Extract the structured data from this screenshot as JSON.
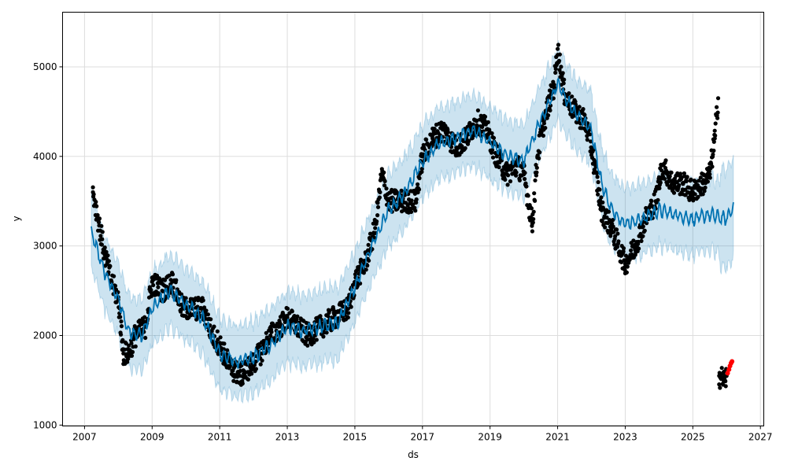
{
  "chart_data": {
    "type": "scatter",
    "title": "",
    "xlabel": "ds",
    "ylabel": "y",
    "xlim": [
      2006.35,
      2027.1
    ],
    "ylim": [
      990,
      5610
    ],
    "grid": true,
    "x_ticks": [
      "2007",
      "2009",
      "2011",
      "2013",
      "2015",
      "2017",
      "2019",
      "2021",
      "2023",
      "2025",
      "2027"
    ],
    "x_tick_values": [
      2007,
      2009,
      2011,
      2013,
      2015,
      2017,
      2019,
      2021,
      2023,
      2025,
      2027
    ],
    "y_ticks": [
      "1000",
      "2000",
      "3000",
      "4000",
      "5000"
    ],
    "y_tick_values": [
      1000,
      2000,
      3000,
      4000,
      5000
    ],
    "colors": {
      "observed": "#000000",
      "forecast_points": "#ff0000",
      "yhat": "#0072B2",
      "band": "#0072B2"
    },
    "observed": [
      [
        2007.25,
        3600
      ],
      [
        2007.4,
        3300
      ],
      [
        2007.6,
        2900
      ],
      [
        2007.8,
        2600
      ],
      [
        2008.0,
        2400
      ],
      [
        2008.15,
        1800
      ],
      [
        2008.3,
        1800
      ],
      [
        2008.5,
        2000
      ],
      [
        2008.8,
        2100
      ],
      [
        2009.0,
        2600
      ],
      [
        2009.3,
        2500
      ],
      [
        2009.6,
        2600
      ],
      [
        2009.9,
        2300
      ],
      [
        2010.2,
        2300
      ],
      [
        2010.5,
        2300
      ],
      [
        2010.8,
        2000
      ],
      [
        2011.0,
        1900
      ],
      [
        2011.3,
        1650
      ],
      [
        2011.6,
        1550
      ],
      [
        2011.9,
        1650
      ],
      [
        2012.2,
        1800
      ],
      [
        2012.5,
        2000
      ],
      [
        2012.8,
        2100
      ],
      [
        2013.0,
        2200
      ],
      [
        2013.3,
        2100
      ],
      [
        2013.6,
        2000
      ],
      [
        2014.0,
        2100
      ],
      [
        2014.4,
        2200
      ],
      [
        2014.8,
        2300
      ],
      [
        2015.0,
        2600
      ],
      [
        2015.3,
        2800
      ],
      [
        2015.6,
        3200
      ],
      [
        2015.8,
        3800
      ],
      [
        2016.0,
        3500
      ],
      [
        2016.4,
        3500
      ],
      [
        2016.8,
        3500
      ],
      [
        2017.0,
        4000
      ],
      [
        2017.3,
        4200
      ],
      [
        2017.6,
        4300
      ],
      [
        2018.0,
        4100
      ],
      [
        2018.3,
        4200
      ],
      [
        2018.6,
        4400
      ],
      [
        2018.9,
        4300
      ],
      [
        2019.2,
        4000
      ],
      [
        2019.5,
        3800
      ],
      [
        2019.8,
        3900
      ],
      [
        2020.0,
        3800
      ],
      [
        2020.25,
        3250
      ],
      [
        2020.4,
        4000
      ],
      [
        2020.6,
        4400
      ],
      [
        2020.9,
        4800
      ],
      [
        2021.0,
        5200
      ],
      [
        2021.2,
        4700
      ],
      [
        2021.5,
        4500
      ],
      [
        2021.8,
        4400
      ],
      [
        2022.0,
        4100
      ],
      [
        2022.3,
        3400
      ],
      [
        2022.6,
        3200
      ],
      [
        2022.9,
        2900
      ],
      [
        2023.0,
        2800
      ],
      [
        2023.3,
        3000
      ],
      [
        2023.6,
        3300
      ],
      [
        2023.9,
        3500
      ],
      [
        2024.1,
        3900
      ],
      [
        2024.4,
        3700
      ],
      [
        2024.7,
        3700
      ],
      [
        2025.0,
        3600
      ],
      [
        2025.3,
        3700
      ],
      [
        2025.5,
        3800
      ],
      [
        2025.65,
        4200
      ],
      [
        2025.75,
        4650
      ],
      [
        2025.78,
        1550
      ],
      [
        2025.95,
        1500
      ],
      [
        2026.0,
        1550
      ]
    ],
    "forecast_points": [
      [
        2026.03,
        1580
      ],
      [
        2026.07,
        1620
      ],
      [
        2026.1,
        1660
      ],
      [
        2026.13,
        1690
      ],
      [
        2026.16,
        1710
      ]
    ],
    "yhat": [
      [
        2007.2,
        3150
      ],
      [
        2007.6,
        2700
      ],
      [
        2008.0,
        2400
      ],
      [
        2008.3,
        2050
      ],
      [
        2008.7,
        2000
      ],
      [
        2009.0,
        2300
      ],
      [
        2009.5,
        2500
      ],
      [
        2010.0,
        2350
      ],
      [
        2010.5,
        2200
      ],
      [
        2011.0,
        1800
      ],
      [
        2011.5,
        1700
      ],
      [
        2012.0,
        1750
      ],
      [
        2012.5,
        1900
      ],
      [
        2013.0,
        2100
      ],
      [
        2013.5,
        2050
      ],
      [
        2014.0,
        2100
      ],
      [
        2014.5,
        2150
      ],
      [
        2015.0,
        2550
      ],
      [
        2015.5,
        3000
      ],
      [
        2016.0,
        3400
      ],
      [
        2016.5,
        3600
      ],
      [
        2017.0,
        3950
      ],
      [
        2017.5,
        4150
      ],
      [
        2018.0,
        4200
      ],
      [
        2018.5,
        4300
      ],
      [
        2019.0,
        4150
      ],
      [
        2019.5,
        4000
      ],
      [
        2020.0,
        3950
      ],
      [
        2020.5,
        4400
      ],
      [
        2021.0,
        4800
      ],
      [
        2021.5,
        4500
      ],
      [
        2022.0,
        4300
      ],
      [
        2022.3,
        3700
      ],
      [
        2022.6,
        3400
      ],
      [
        2023.0,
        3250
      ],
      [
        2023.5,
        3300
      ],
      [
        2024.0,
        3400
      ],
      [
        2024.5,
        3350
      ],
      [
        2025.0,
        3300
      ],
      [
        2025.5,
        3350
      ],
      [
        2026.0,
        3300
      ],
      [
        2026.2,
        3450
      ]
    ],
    "band_halfwidth": 400,
    "band_halfwidth_forecast": 550
  }
}
